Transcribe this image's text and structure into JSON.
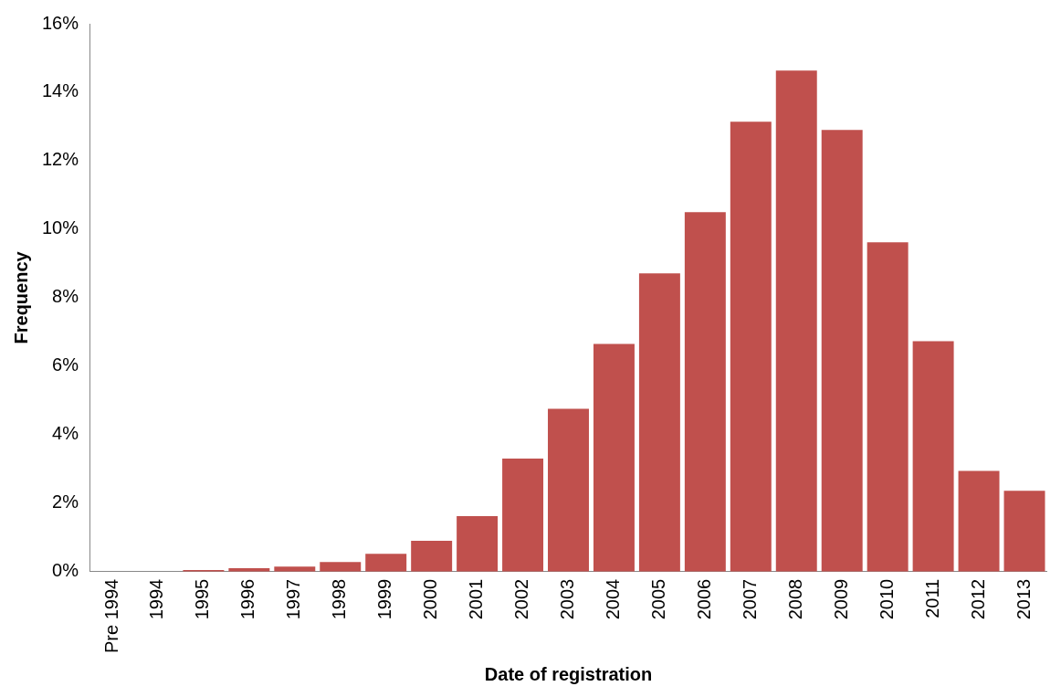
{
  "chart_data": {
    "type": "bar",
    "xlabel": "Date of registration",
    "ylabel": "Frequency",
    "categories": [
      "Pre 1994",
      "1994",
      "1995",
      "1996",
      "1997",
      "1998",
      "1999",
      "2000",
      "2001",
      "2002",
      "2003",
      "2004",
      "2005",
      "2006",
      "2007",
      "2008",
      "2009",
      "2010",
      "2011",
      "2012",
      "2013"
    ],
    "values": [
      0,
      0,
      0.05,
      0.1,
      0.15,
      0.28,
      0.52,
      0.9,
      1.62,
      3.3,
      4.76,
      6.65,
      8.71,
      10.5,
      13.14,
      14.63,
      12.9,
      9.62,
      6.73,
      2.94,
      2.36
    ],
    "color": "#c0504d",
    "ylim": [
      0,
      16
    ],
    "yticks": [
      {
        "value": 0,
        "label": "0%"
      },
      {
        "value": 2,
        "label": "2%"
      },
      {
        "value": 4,
        "label": "4%"
      },
      {
        "value": 6,
        "label": "6%"
      },
      {
        "value": 8,
        "label": "8%"
      },
      {
        "value": 10,
        "label": "10%"
      },
      {
        "value": 12,
        "label": "12%"
      },
      {
        "value": 14,
        "label": "14%"
      },
      {
        "value": 16,
        "label": "16%"
      }
    ],
    "grid": false,
    "legend": false
  }
}
